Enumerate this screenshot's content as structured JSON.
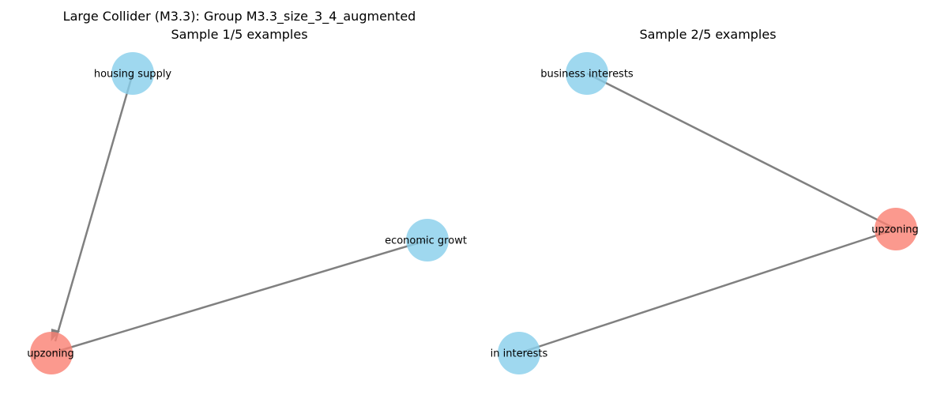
{
  "colors": {
    "edge": "#808080",
    "node_default": "#87ceeb",
    "node_highlight": "#fa8072"
  },
  "panels": [
    {
      "title_line1": "Large Collider (M3.3): Group M3.3_size_3_4_augmented",
      "title_line2": "Sample 1/5 examples",
      "nodes": [
        {
          "label": "housing supply",
          "role": "default"
        },
        {
          "label": "economic growt",
          "role": "default"
        },
        {
          "label": "upzoning",
          "role": "highlight"
        }
      ],
      "edges": [
        {
          "from": "housing supply",
          "to": "upzoning",
          "directed": true
        },
        {
          "from": "economic growt",
          "to": "upzoning",
          "directed": false
        }
      ]
    },
    {
      "title_line1": "",
      "title_line2": "Sample 2/5 examples",
      "nodes": [
        {
          "label": "business interests",
          "role": "default"
        },
        {
          "label": "upzoning",
          "role": "highlight"
        },
        {
          "label": "in interests",
          "role": "default"
        }
      ],
      "edges": [
        {
          "from": "business interests",
          "to": "upzoning",
          "directed": false
        },
        {
          "from": "in interests",
          "to": "upzoning",
          "directed": false
        }
      ]
    }
  ]
}
